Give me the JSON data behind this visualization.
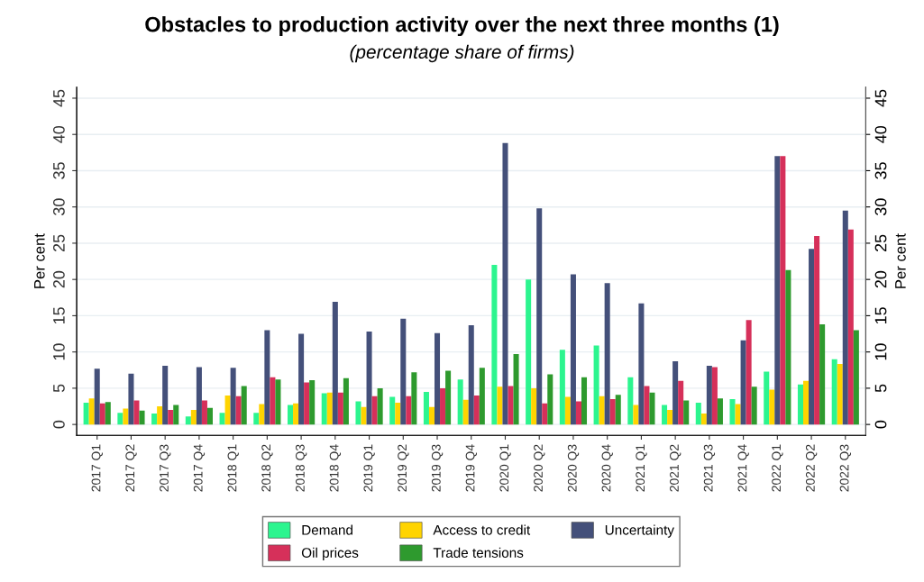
{
  "chart_data": {
    "type": "bar",
    "title": "Obstacles to production activity over the next three months (1)",
    "subtitle": "(percentage share of firms)",
    "ylabel": "Per cent",
    "y2label": "Per cent",
    "categories": [
      "2017 Q1",
      "2017 Q2",
      "2017 Q3",
      "2017 Q4",
      "2018 Q1",
      "2018 Q2",
      "2018 Q3",
      "2018 Q4",
      "2019 Q1",
      "2019 Q2",
      "2019 Q3",
      "2019 Q4",
      "2020 Q1",
      "2020 Q2",
      "2020 Q3",
      "2020 Q4",
      "2021 Q1",
      "2021 Q2",
      "2021 Q3",
      "2021 Q4",
      "2022 Q1",
      "2022 Q2",
      "2022 Q3"
    ],
    "series": [
      {
        "name": "Demand",
        "color": "#2cf58f",
        "values": [
          3.0,
          1.6,
          1.5,
          1.1,
          1.6,
          1.6,
          2.7,
          4.3,
          3.2,
          3.8,
          4.5,
          6.2,
          22.0,
          20.0,
          10.3,
          10.9,
          6.5,
          2.7,
          3.0,
          3.5,
          7.3,
          5.5,
          9.0
        ]
      },
      {
        "name": "Access to credit",
        "color": "#ffd400",
        "values": [
          3.6,
          2.2,
          2.5,
          2.0,
          4.0,
          2.8,
          2.9,
          4.4,
          2.4,
          3.0,
          2.4,
          3.4,
          5.2,
          5.0,
          3.8,
          3.9,
          2.7,
          2.0,
          1.5,
          2.8,
          4.8,
          6.0,
          8.35
        ]
      },
      {
        "name": "Uncertainty",
        "color": "#44507a",
        "values": [
          7.7,
          7.0,
          8.1,
          7.9,
          7.8,
          13.0,
          12.5,
          16.9,
          12.8,
          14.6,
          12.6,
          13.7,
          38.8,
          29.8,
          20.7,
          19.5,
          16.7,
          8.7,
          8.1,
          11.6,
          37.0,
          24.2,
          29.5
        ]
      },
      {
        "name": "Oil prices",
        "color": "#d6305a",
        "values": [
          2.9,
          3.3,
          2.0,
          3.3,
          3.9,
          6.5,
          5.8,
          4.4,
          3.9,
          3.9,
          5.0,
          4.0,
          5.3,
          2.9,
          3.2,
          3.5,
          5.3,
          6.0,
          7.9,
          14.4,
          37.0,
          26.0,
          26.9
        ]
      },
      {
        "name": "Trade tensions",
        "color": "#2e9a2e",
        "values": [
          3.1,
          1.9,
          2.7,
          2.3,
          5.3,
          6.2,
          6.1,
          6.4,
          5.0,
          7.2,
          7.4,
          7.8,
          9.7,
          6.9,
          6.5,
          4.1,
          4.4,
          3.3,
          3.6,
          5.2,
          21.3,
          13.8,
          13.0
        ]
      }
    ],
    "ylim": [
      -1.5,
      46.5
    ],
    "yticks": [
      0,
      5,
      10,
      15,
      20,
      25,
      30,
      35,
      40,
      45
    ],
    "y2lim": [
      -1.5,
      46.5
    ],
    "y2ticks": [
      0,
      5,
      10,
      15,
      20,
      25,
      30,
      35,
      40,
      45
    ],
    "grid": "y",
    "legend": "bottom"
  }
}
